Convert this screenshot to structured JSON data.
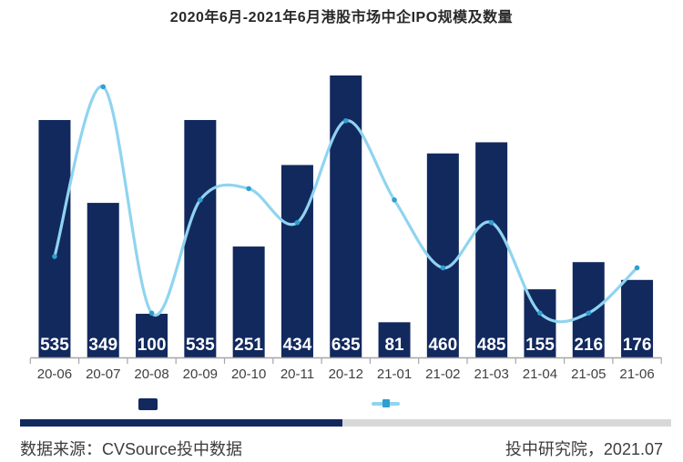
{
  "title": "2020年6月-2021年6月港股市场中企IPO规模及数量",
  "chart_data": {
    "type": "bar",
    "subtype": "bar+line-combo",
    "categories": [
      "20-06",
      "20-07",
      "20-08",
      "20-09",
      "20-10",
      "20-11",
      "20-12",
      "21-01",
      "21-02",
      "21-03",
      "21-04",
      "21-05",
      "21-06"
    ],
    "series": [
      {
        "name": "bar_series",
        "type": "bar",
        "values": [
          535,
          349,
          100,
          535,
          251,
          434,
          635,
          81,
          460,
          485,
          155,
          216,
          176
        ],
        "value_labels_shown": true,
        "ylim": [
          0,
          650
        ],
        "axis_labels_visible": false
      },
      {
        "name": "line_series",
        "type": "line",
        "values": [
          9,
          24,
          4,
          14,
          15,
          12,
          21,
          14,
          8,
          12,
          4,
          4,
          8
        ],
        "ylim": [
          0,
          25
        ],
        "axis_labels_visible": false,
        "smooth": true,
        "markers": true
      }
    ],
    "title": "2020年6月-2021年6月港股市场中企IPO规模及数量",
    "xlabel": "",
    "ylabel": "",
    "grid": false,
    "legend_position": "bottom"
  },
  "colors": {
    "bar": "#12295E",
    "line": "#8FD4F0",
    "marker": "#2F9FD0",
    "axis": "#A6A6A6",
    "x_label": "#3F3F3F",
    "bar_value_label": "#FFFFFF",
    "divider_navy": "#12295E",
    "divider_gray": "#D8D8D8"
  },
  "footer": {
    "source_left": "数据来源：CVSource投中数据",
    "source_right": "投中研究院，2021.07"
  }
}
